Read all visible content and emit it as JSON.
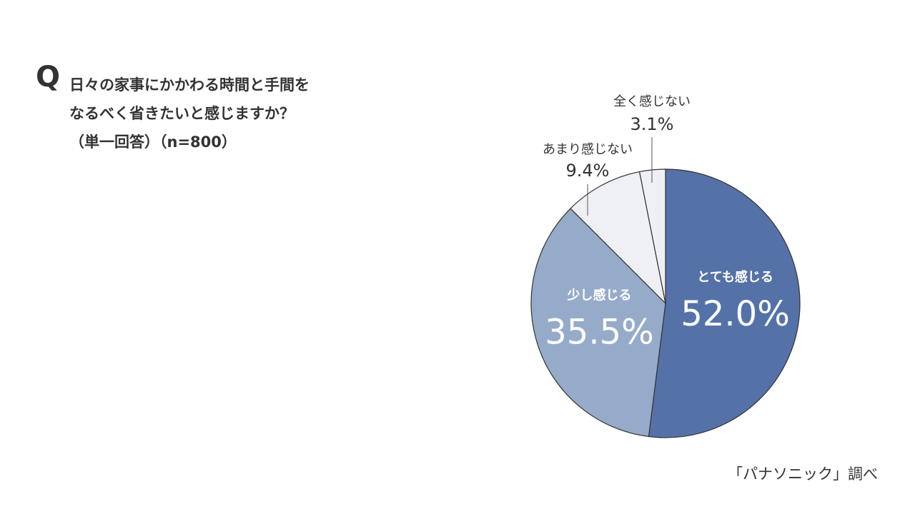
{
  "chart_data": {
    "type": "pie",
    "title_prefix": "Q",
    "title_lines": [
      "日々の家事にかかわる時間と手間を",
      "なるべく省きたいと感じますか？"
    ],
    "note": "（単一回答）（n=800）",
    "source": "「パナソニック」調べ",
    "categories": [
      "とても感じる",
      "少し感じる",
      "あまり感じない",
      "全く感じない"
    ],
    "values": [
      52.0,
      35.5,
      9.4,
      3.1
    ],
    "value_labels": [
      "52.0%",
      "35.5%",
      "9.4%",
      "3.1%"
    ],
    "colors": [
      "#5572a8",
      "#96abc9",
      "#eef0f5",
      "#eef0f5"
    ]
  }
}
